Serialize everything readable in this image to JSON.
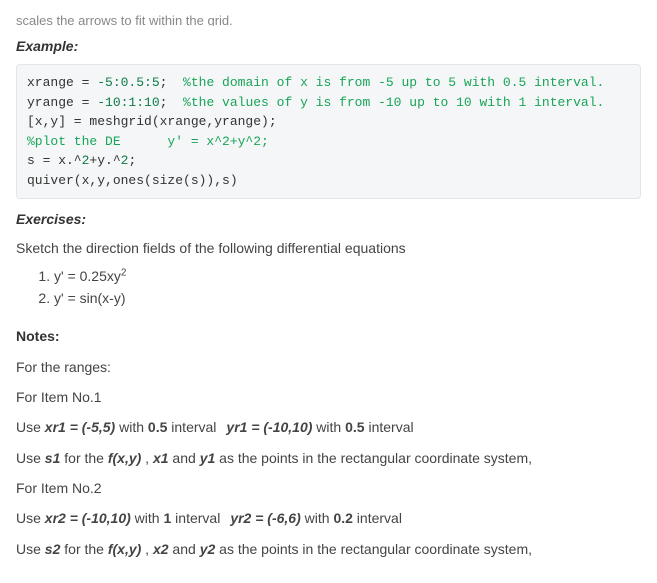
{
  "top_cut": "scales the arrows to fit within the grid.",
  "example_label": "Example:",
  "code": {
    "l1_a": "xrange = ",
    "l1_b": "-5:0.5:5",
    "l1_c": ";  ",
    "l1_d": "%the domain of x is from -5 up to 5 with 0.5 interval.",
    "l2_a": "yrange = ",
    "l2_b": "-10:1:10",
    "l2_c": ";  ",
    "l2_d": "%the values of y is from -10 up to 10 with 1 interval.",
    "l3": "[x,y] = meshgrid(xrange,yrange);",
    "l4": "%plot the DE      y' = x^2+y^2;",
    "l5_a": "s = x.^",
    "l5_b": "2",
    "l5_c": "+y.^",
    "l5_d": "2",
    "l5_e": ";",
    "l6": "quiver(x,y,ones(size(s)),s)"
  },
  "exercises_label": "Exercises:",
  "exercise_intro": "Sketch the direction fields of the following differential equations",
  "ex1_text": "y' = 0.25xy",
  "ex1_sup": "2",
  "ex2_text": "y' = sin(x-y)",
  "notes_label": "Notes:",
  "ranges_label": "For the ranges:",
  "item1_label": "For Item No.1",
  "item1_line_use_a": "Use ",
  "item1_xr_var": "xr1 = (-5,5)",
  "item1_with1": " with ",
  "item1_int1": "0.5",
  "item1_interval_word1": " interval",
  "item1_yr_var": "yr1 = (-10,10)",
  "item1_with2": " with ",
  "item1_int2": "0.5",
  "item1_interval_word2": " interval",
  "item1_s_use_a": "Use ",
  "item1_s_var": "s1",
  "item1_s_for": " for the ",
  "item1_fxy": "f(x,y)",
  "item1_comma": " , ",
  "item1_x_var": "x1",
  "item1_and": " and ",
  "item1_y_var": "y1",
  "item1_tail": " as the points in the rectangular coordinate system,",
  "item2_label": "For Item No.2",
  "item2_line_use_a": "Use ",
  "item2_xr_var": "xr2 = (-10,10)",
  "item2_with1": " with ",
  "item2_int1": "1",
  "item2_interval_word1": " interval",
  "item2_yr_var": "yr2 = (-6,6)",
  "item2_with2": " with ",
  "item2_int2": "0.2",
  "item2_interval_word2": " interval",
  "item2_s_use_a": "Use ",
  "item2_s_var": "s2",
  "item2_s_for": " for the ",
  "item2_fxy": "f(x,y)",
  "item2_comma": " , ",
  "item2_x_var": "x2",
  "item2_and": " and ",
  "item2_y_var": "y2",
  "item2_tail": " as the points in the rectangular coordinate system,"
}
